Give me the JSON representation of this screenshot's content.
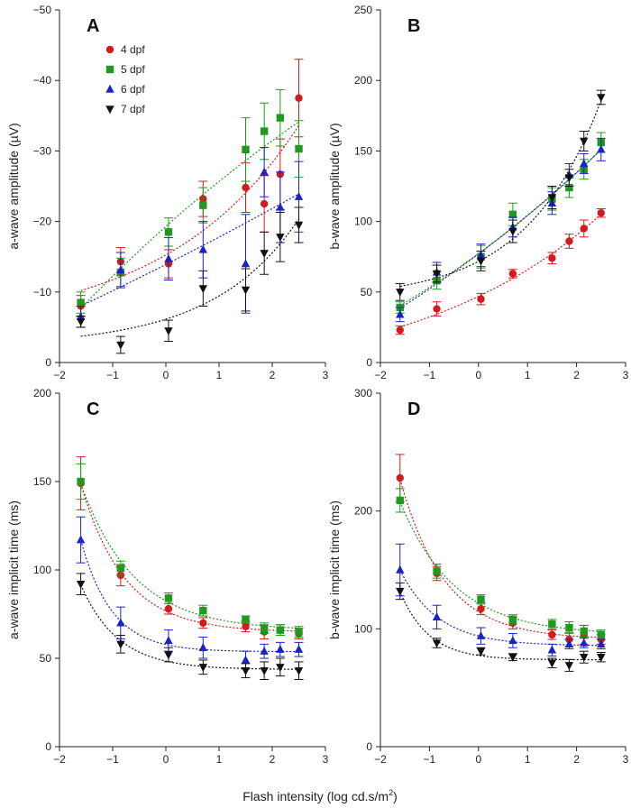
{
  "figure": {
    "x_label_main": "Flash intensity (log cd.s/m",
    "x_label_sup": "2",
    "x_label_end": ")"
  },
  "series_styles": [
    {
      "name": "4 dpf",
      "color": "#d01c1c",
      "marker": "circle"
    },
    {
      "name": "5 dpf",
      "color": "#1f9a1f",
      "marker": "square"
    },
    {
      "name": "6 dpf",
      "color": "#1a22c8",
      "marker": "triangle-up"
    },
    {
      "name": "7 dpf",
      "color": "#111111",
      "marker": "triangle-down"
    }
  ],
  "chart_data": [
    {
      "panel": "A",
      "type": "scatter",
      "ylabel": "a-wave amplitude (µV)",
      "xlim": [
        -2,
        3
      ],
      "xticks": [
        -2,
        -1,
        0,
        1,
        2,
        3
      ],
      "xtick_labels": [
        "−2",
        "−1",
        "0",
        "1",
        "2",
        "3"
      ],
      "ylim": [
        0,
        -50
      ],
      "yticks": [
        0,
        -10,
        -20,
        -30,
        -40,
        -50
      ],
      "ytick_labels": [
        "0",
        "−10",
        "−20",
        "−30",
        "−40",
        "−50"
      ],
      "legend": "top-left",
      "fit_lines": "dotted",
      "x": [
        -1.6,
        -0.85,
        0.05,
        0.7,
        1.5,
        1.85,
        2.15,
        2.5
      ],
      "series": [
        {
          "name": "4 dpf",
          "values": [
            -8,
            -14.3,
            -14,
            -23.2,
            -24.8,
            -22.5,
            -26.7,
            -37.5
          ],
          "errors": [
            1.5,
            2,
            2,
            2.5,
            3.5,
            4,
            5,
            5.5
          ]
        },
        {
          "name": "5 dpf",
          "values": [
            -8.5,
            -12.8,
            -18.5,
            -22.3,
            -30.2,
            -32.8,
            -34.7,
            -30.3
          ],
          "errors": [
            1.5,
            2,
            2,
            2.5,
            4.5,
            4,
            4,
            4
          ]
        },
        {
          "name": "6 dpf",
          "values": [
            -6.5,
            -13.1,
            -14.7,
            -16,
            -14,
            -27,
            -22,
            -23.5
          ],
          "errors": [
            1.5,
            2.5,
            3,
            4,
            7,
            3.5,
            5,
            5
          ]
        },
        {
          "name": "7 dpf",
          "values": [
            -5.8,
            -2.5,
            -4.5,
            -10.5,
            -10.3,
            -15.5,
            -17.8,
            -19.5
          ],
          "errors": [
            0.8,
            1.2,
            1.5,
            2.5,
            3,
            3,
            3.5,
            2.5
          ]
        }
      ]
    },
    {
      "panel": "B",
      "type": "scatter",
      "ylabel": "b-wave amplitude (µV)",
      "xlim": [
        -2,
        3
      ],
      "xticks": [
        -2,
        -1,
        0,
        1,
        2,
        3
      ],
      "xtick_labels": [
        "−2",
        "−1",
        "0",
        "1",
        "2",
        "3"
      ],
      "ylim": [
        0,
        250
      ],
      "yticks": [
        0,
        50,
        100,
        150,
        200,
        250
      ],
      "ytick_labels": [
        "0",
        "50",
        "100",
        "150",
        "200",
        "250"
      ],
      "fit_lines": "dotted",
      "x": [
        -1.6,
        -0.85,
        0.05,
        0.7,
        1.5,
        1.85,
        2.15,
        2.5
      ],
      "series": [
        {
          "name": "4 dpf",
          "values": [
            23,
            38,
            45,
            63,
            74,
            86,
            95,
            106
          ],
          "errors": [
            3,
            5,
            4,
            3,
            4,
            5,
            6,
            3
          ]
        },
        {
          "name": "5 dpf",
          "values": [
            39,
            58,
            75,
            105,
            116,
            124,
            137,
            156
          ],
          "errors": [
            4,
            6,
            8,
            8,
            8,
            7,
            7,
            7
          ]
        },
        {
          "name": "6 dpf",
          "values": [
            34,
            64,
            76,
            96,
            113,
            133,
            141,
            151
          ],
          "errors": [
            5,
            7,
            8,
            7,
            8,
            8,
            7,
            8
          ]
        },
        {
          "name": "7 dpf",
          "values": [
            50,
            63,
            72,
            93,
            117,
            131,
            157,
            188
          ],
          "errors": [
            6,
            6,
            7,
            8,
            8,
            6,
            7,
            5
          ]
        }
      ]
    },
    {
      "panel": "C",
      "type": "scatter",
      "ylabel": "a-wave implicit time (ms)",
      "xlim": [
        -2,
        3
      ],
      "xticks": [
        -2,
        -1,
        0,
        1,
        2,
        3
      ],
      "xtick_labels": [
        "−2",
        "−1",
        "0",
        "1",
        "2",
        "3"
      ],
      "ylim": [
        0,
        200
      ],
      "yticks": [
        0,
        50,
        100,
        150,
        200
      ],
      "ytick_labels": [
        "0",
        "50",
        "100",
        "150",
        "200"
      ],
      "fit_lines": "dotted",
      "x": [
        -1.6,
        -0.85,
        0.05,
        0.7,
        1.5,
        1.85,
        2.15,
        2.5
      ],
      "series": [
        {
          "name": "4 dpf",
          "values": [
            149,
            97,
            78,
            70,
            68,
            65,
            66,
            64
          ],
          "errors": [
            15,
            6,
            3,
            3,
            3,
            4,
            3,
            3
          ]
        },
        {
          "name": "5 dpf",
          "values": [
            150,
            101,
            84,
            77,
            72,
            67,
            66,
            65
          ],
          "errors": [
            10,
            4,
            3,
            3,
            2,
            3,
            3,
            3
          ]
        },
        {
          "name": "6 dpf",
          "values": [
            117,
            70,
            60,
            56,
            49,
            54,
            55,
            55
          ],
          "errors": [
            13,
            9,
            6,
            6,
            5,
            4,
            4,
            4
          ]
        },
        {
          "name": "7 dpf",
          "values": [
            92,
            58,
            52,
            45,
            43,
            43,
            45,
            43
          ],
          "errors": [
            6,
            5,
            4,
            4,
            4,
            5,
            5,
            5
          ]
        }
      ]
    },
    {
      "panel": "D",
      "type": "scatter",
      "ylabel": "b-wave implicit time (ms)",
      "xlim": [
        -2,
        3
      ],
      "xticks": [
        -2,
        -1,
        0,
        1,
        2,
        3
      ],
      "xtick_labels": [
        "−2",
        "−1",
        "0",
        "1",
        "2",
        "3"
      ],
      "ylim": [
        0,
        300
      ],
      "yticks": [
        0,
        100,
        200,
        300
      ],
      "ytick_labels": [
        "0",
        "100",
        "200",
        "300"
      ],
      "fit_lines": "dotted",
      "x": [
        -1.6,
        -0.85,
        0.05,
        0.7,
        1.5,
        1.85,
        2.15,
        2.5
      ],
      "series": [
        {
          "name": "4 dpf",
          "values": [
            228,
            147,
            117,
            105,
            95,
            91,
            95,
            91
          ],
          "errors": [
            20,
            6,
            5,
            5,
            4,
            6,
            8,
            4
          ]
        },
        {
          "name": "5 dpf",
          "values": [
            209,
            149,
            125,
            108,
            104,
            101,
            98,
            95
          ],
          "errors": [
            10,
            6,
            4,
            4,
            4,
            5,
            5,
            4
          ]
        },
        {
          "name": "6 dpf",
          "values": [
            150,
            110,
            94,
            90,
            82,
            87,
            88,
            87
          ],
          "errors": [
            22,
            10,
            7,
            6,
            5,
            4,
            4,
            4
          ]
        },
        {
          "name": "7 dpf",
          "values": [
            132,
            88,
            81,
            76,
            71,
            69,
            76,
            76
          ],
          "errors": [
            7,
            4,
            3,
            3,
            4,
            5,
            5,
            4
          ]
        }
      ]
    }
  ]
}
